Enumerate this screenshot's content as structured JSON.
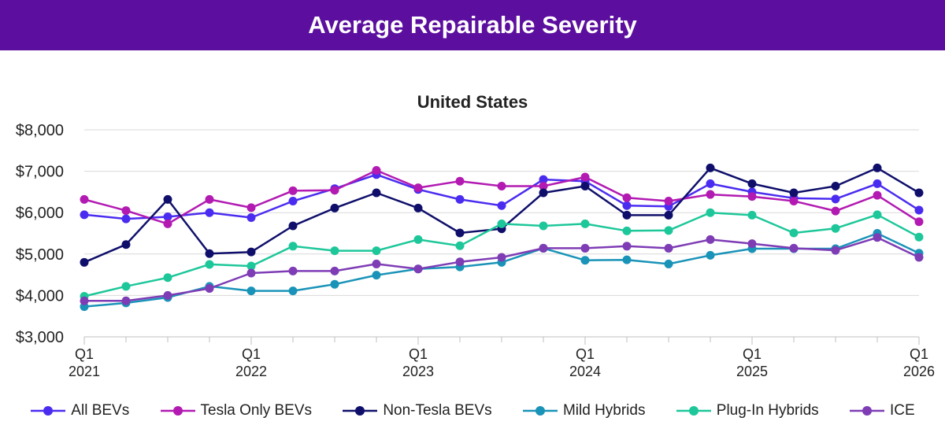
{
  "banner": {
    "title": "Average Repairable Severity"
  },
  "colors": {
    "banner_bg": "#5c0e9e"
  },
  "chart_data": {
    "type": "line",
    "title": "United States",
    "xlabel": "",
    "ylabel": "",
    "ylim": [
      3000,
      8000
    ],
    "yticks": [
      "$3,000",
      "$4,000",
      "$5,000",
      "$6,000",
      "$7,000",
      "$8,000"
    ],
    "ytick_values": [
      3000,
      4000,
      5000,
      6000,
      7000,
      8000
    ],
    "xtick_labels": [
      {
        "quarter": "Q1",
        "year": "2021"
      },
      {
        "quarter": "Q1",
        "year": "2022"
      },
      {
        "quarter": "Q1",
        "year": "2023"
      },
      {
        "quarter": "Q1",
        "year": "2024"
      },
      {
        "quarter": "Q1",
        "year": "2025"
      },
      {
        "quarter": "Q1",
        "year": "2026"
      }
    ],
    "categories": [
      "2021 Q1",
      "2021 Q2",
      "2021 Q3",
      "2021 Q4",
      "2022 Q1",
      "2022 Q2",
      "2022 Q3",
      "2022 Q4",
      "2023 Q1",
      "2023 Q2",
      "2023 Q3",
      "2023 Q4",
      "2024 Q1",
      "2024 Q2",
      "2024 Q3",
      "2024 Q4",
      "2025 Q1",
      "2025 Q2",
      "2025 Q3",
      "2025 Q4",
      "2026 Q1"
    ],
    "grid": "horizontal",
    "legend_position": "bottom",
    "series": [
      {
        "name": "All BEVs",
        "color": "#4a2cf0",
        "values": [
          5950,
          5850,
          5900,
          6000,
          5880,
          6280,
          6580,
          6920,
          6560,
          6320,
          6170,
          6800,
          6760,
          6170,
          6150,
          6700,
          6500,
          6350,
          6330,
          6700,
          6060
        ]
      },
      {
        "name": "Tesla Only BEVs",
        "color": "#b21ab2",
        "values": [
          6320,
          6050,
          5730,
          6320,
          6120,
          6530,
          6540,
          7020,
          6600,
          6760,
          6640,
          6640,
          6860,
          6360,
          6280,
          6440,
          6390,
          6280,
          6040,
          6420,
          5780
        ]
      },
      {
        "name": "Non-Tesla BEVs",
        "color": "#0f0f6b",
        "values": [
          4800,
          5230,
          6320,
          5010,
          5050,
          5680,
          6110,
          6480,
          6110,
          5510,
          5610,
          6480,
          6640,
          5940,
          5940,
          7080,
          6700,
          6480,
          6640,
          7080,
          6480
        ]
      },
      {
        "name": "Mild Hybrids",
        "color": "#1a93b8",
        "values": [
          3730,
          3820,
          3950,
          4220,
          4110,
          4110,
          4270,
          4490,
          4640,
          4690,
          4800,
          5140,
          4850,
          4860,
          4760,
          4970,
          5130,
          5130,
          5130,
          5500,
          5020
        ]
      },
      {
        "name": "Plug-In Hybrids",
        "color": "#1dc79a",
        "values": [
          3980,
          4220,
          4430,
          4750,
          4710,
          5190,
          5080,
          5080,
          5350,
          5200,
          5730,
          5680,
          5730,
          5560,
          5570,
          6000,
          5940,
          5510,
          5620,
          5950,
          5410
        ]
      },
      {
        "name": "ICE",
        "color": "#7e3cb5",
        "values": [
          3870,
          3870,
          4000,
          4170,
          4540,
          4590,
          4590,
          4760,
          4640,
          4810,
          4920,
          5140,
          5140,
          5190,
          5140,
          5350,
          5250,
          5140,
          5090,
          5400,
          4920
        ]
      }
    ]
  }
}
